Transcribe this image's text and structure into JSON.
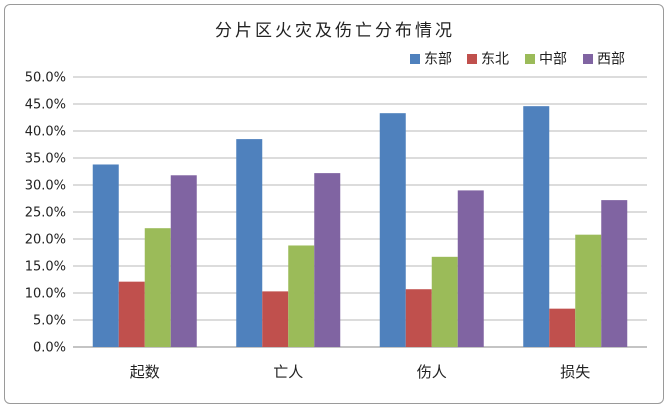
{
  "chart_data": {
    "type": "bar",
    "title": "分片区火灾及伤亡分布情况",
    "categories": [
      "起数",
      "亡人",
      "伤人",
      "损失"
    ],
    "series": [
      {
        "name": "东部",
        "color": "#4f81bd",
        "values": [
          33.8,
          38.5,
          43.3,
          44.6
        ]
      },
      {
        "name": "东北",
        "color": "#c0504d",
        "values": [
          12.1,
          10.3,
          10.7,
          7.1
        ]
      },
      {
        "name": "中部",
        "color": "#9bbb59",
        "values": [
          22.0,
          18.8,
          16.7,
          20.8
        ]
      },
      {
        "name": "西部",
        "color": "#8064a2",
        "values": [
          31.8,
          32.2,
          29.0,
          27.2
        ]
      }
    ],
    "ylim": [
      0,
      50
    ],
    "yticks": [
      "0.0%",
      "5.0%",
      "10.0%",
      "15.0%",
      "20.0%",
      "25.0%",
      "30.0%",
      "35.0%",
      "40.0%",
      "45.0%",
      "50.0%"
    ],
    "legend_position": "top-right",
    "grid": true
  }
}
